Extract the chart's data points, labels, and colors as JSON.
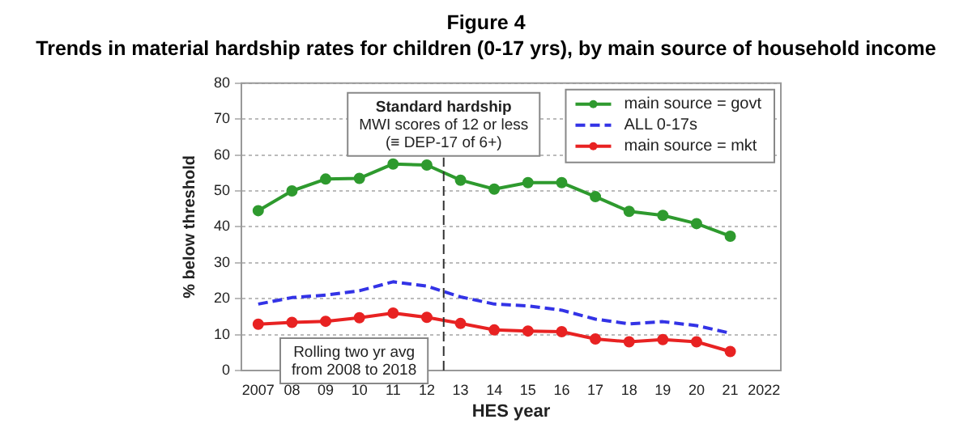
{
  "chart_data": {
    "type": "line",
    "title": "Figure 4",
    "subtitle": "Trends in material hardship rates for children (0-17 yrs), by main source of household income",
    "xlabel": "HES year",
    "ylabel": "% below threshold",
    "x": [
      2007,
      2008,
      2009,
      2010,
      2011,
      2012,
      2013,
      2014,
      2015,
      2016,
      2017,
      2018,
      2019,
      2020,
      2021
    ],
    "xlim": [
      2006.5,
      2022.5
    ],
    "xticks": [
      2007,
      {
        "value": 2008,
        "label": "08"
      },
      {
        "value": 2009,
        "label": "09"
      },
      {
        "value": 2010,
        "label": "10"
      },
      {
        "value": 2011,
        "label": "11"
      },
      {
        "value": 2012,
        "label": "12"
      },
      {
        "value": 2013,
        "label": "13"
      },
      {
        "value": 2014,
        "label": "14"
      },
      {
        "value": 2015,
        "label": "15"
      },
      {
        "value": 2016,
        "label": "16"
      },
      {
        "value": 2017,
        "label": "17"
      },
      {
        "value": 2018,
        "label": "18"
      },
      {
        "value": 2019,
        "label": "19"
      },
      {
        "value": 2020,
        "label": "20"
      },
      {
        "value": 2021,
        "label": "21"
      },
      2022
    ],
    "ylim": [
      0,
      80
    ],
    "yticks": [
      0,
      10,
      20,
      30,
      40,
      50,
      60,
      70,
      80
    ],
    "grid": "y",
    "legend": "top right",
    "series": [
      {
        "name": "main source = govt",
        "color": "#2e9a2e",
        "marker": "circle",
        "line_style": "solid",
        "values": [
          44.5,
          50,
          53.3,
          53.5,
          57.5,
          57.2,
          53,
          50.5,
          52.3,
          52.3,
          48.4,
          44.3,
          43.2,
          40.9,
          37.4
        ]
      },
      {
        "name": "ALL 0-17s",
        "color": "#3333e6",
        "marker": "none",
        "line_style": "dashed",
        "values": [
          18.5,
          20.3,
          21,
          22.2,
          24.7,
          23.5,
          20.5,
          18.5,
          18,
          16.8,
          14.3,
          13,
          13.6,
          12.5,
          10.4
        ]
      },
      {
        "name": "main source = mkt",
        "color": "#e82222",
        "marker": "circle",
        "line_style": "solid",
        "values": [
          12.9,
          13.4,
          13.7,
          14.7,
          16,
          14.8,
          13.1,
          11.3,
          11,
          10.8,
          8.8,
          8,
          8.6,
          8,
          5.3
        ]
      }
    ],
    "ref_lines": [
      {
        "axis": "x",
        "value": 2012.5,
        "color": "#333333",
        "line_style": "dashed"
      }
    ],
    "annotations": [
      "Standard hardship\nMWI scores of 12 or less\n(≡ DEP-17 of 6+)",
      "Rolling two yr avg\nfrom 2008 to 2018"
    ]
  }
}
